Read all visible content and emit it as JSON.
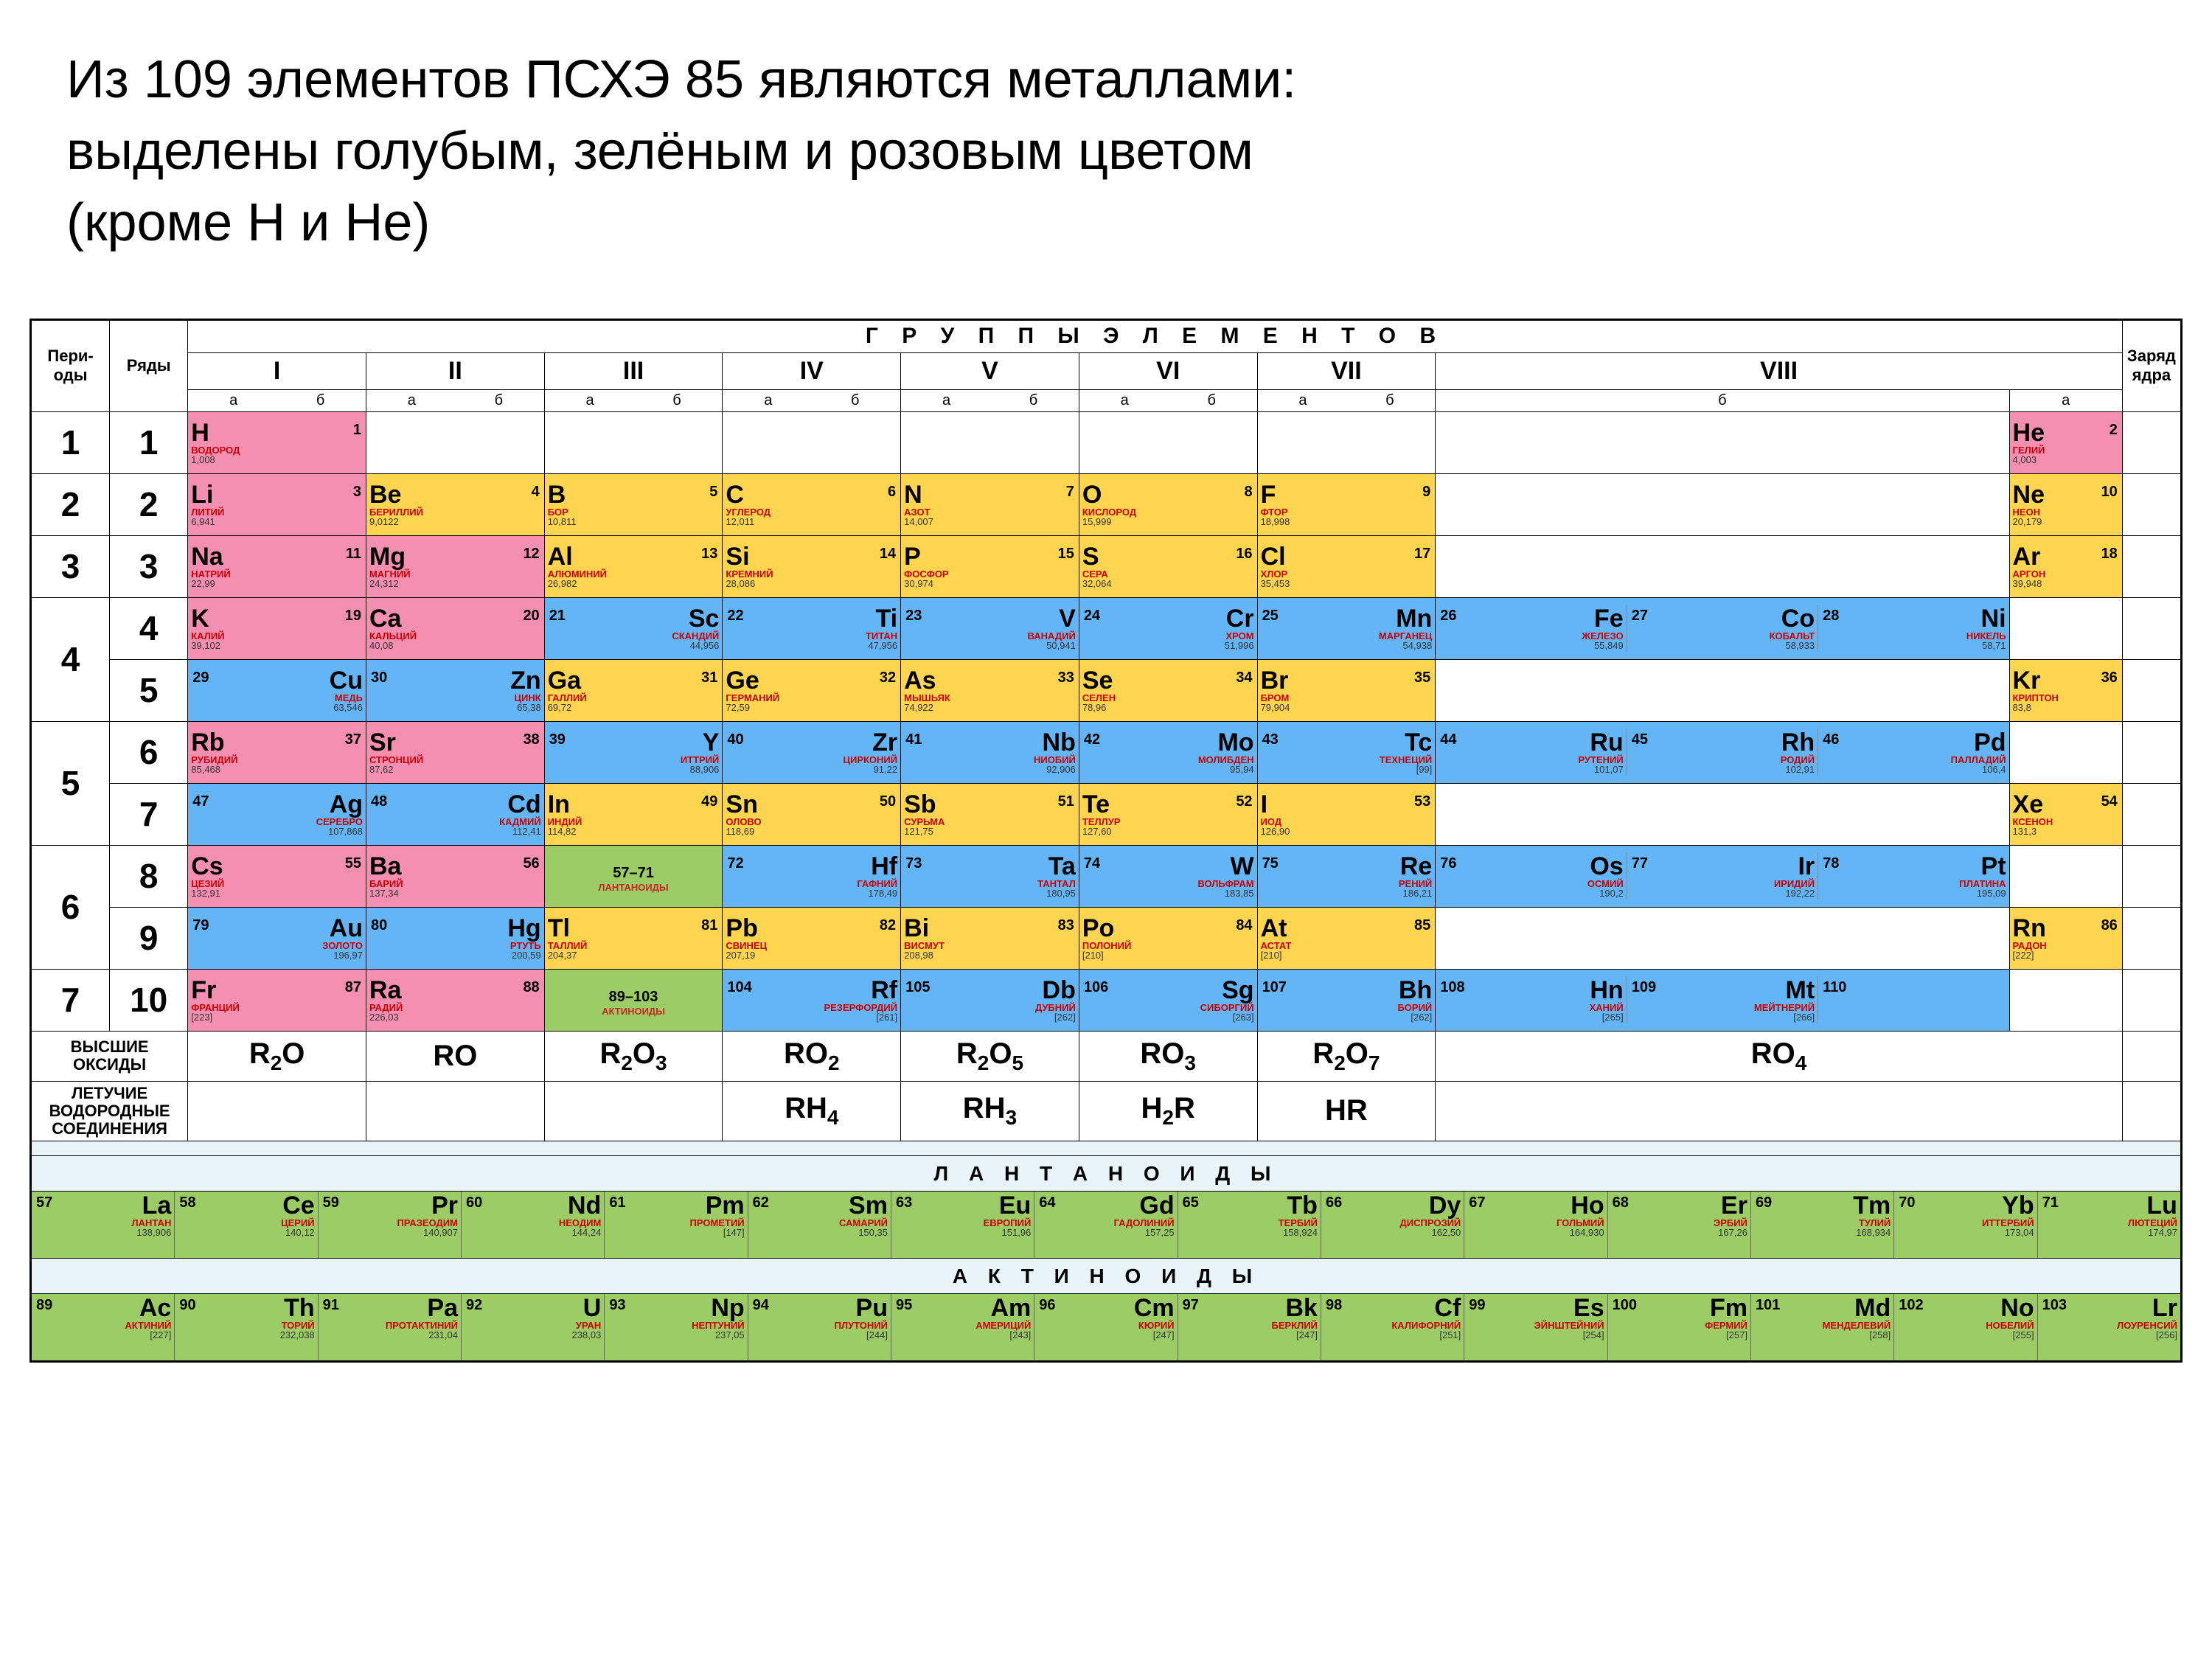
{
  "title_line1": "Из 109 элементов ПСХЭ 85 являются металлами:",
  "title_line2": "выделены голубым, зелёным и розовым цветом",
  "title_line3": "(кроме Н и Не)",
  "text_color": "#000000",
  "colors": {
    "pink": "#f48fb1",
    "yellow": "#ffd54f",
    "blue": "#64b5f6",
    "green": "#9ccc65",
    "white": "#ffffff",
    "spacer": "#e8f4f8",
    "name": "#c62828"
  },
  "header": {
    "periods": "Пери-\nоды",
    "rows": "Ряды",
    "groups_title": "Г Р У П П Ы   Э Л Е М Е Н Т О В",
    "edge": "Заряд ядра",
    "roman": [
      "I",
      "II",
      "III",
      "IV",
      "V",
      "VI",
      "VII",
      "VIII"
    ],
    "ab_a": "а",
    "ab_b": "б"
  },
  "rows": [
    {
      "period": "1",
      "row": "1",
      "cells": {
        "1a": {
          "s": "H",
          "n": 1,
          "name": "ВОДОРОД",
          "m": "1,008",
          "c": "pink",
          "side": "A"
        },
        "8a": {
          "s": "He",
          "n": 2,
          "name": "ГЕЛИЙ",
          "m": "4,003",
          "c": "pink",
          "side": "A"
        }
      }
    },
    {
      "period": "2",
      "row": "2",
      "cells": {
        "1a": {
          "s": "Li",
          "n": 3,
          "name": "ЛИТИЙ",
          "m": "6,941",
          "c": "pink",
          "side": "A"
        },
        "2a": {
          "s": "Be",
          "n": 4,
          "name": "БЕРИЛЛИЙ",
          "m": "9,0122",
          "c": "yellow",
          "side": "A"
        },
        "3a": {
          "s": "B",
          "n": 5,
          "name": "БОР",
          "m": "10,811",
          "c": "yellow",
          "side": "A"
        },
        "4a": {
          "s": "C",
          "n": 6,
          "name": "УГЛЕРОД",
          "m": "12,011",
          "c": "yellow",
          "side": "A"
        },
        "5a": {
          "s": "N",
          "n": 7,
          "name": "АЗОТ",
          "m": "14,007",
          "c": "yellow",
          "side": "A"
        },
        "6a": {
          "s": "O",
          "n": 8,
          "name": "КИСЛОРОД",
          "m": "15,999",
          "c": "yellow",
          "side": "A"
        },
        "7a": {
          "s": "F",
          "n": 9,
          "name": "ФТОР",
          "m": "18,998",
          "c": "yellow",
          "side": "A"
        },
        "8a": {
          "s": "Ne",
          "n": 10,
          "name": "НЕОН",
          "m": "20,179",
          "c": "yellow",
          "side": "A"
        }
      }
    },
    {
      "period": "3",
      "row": "3",
      "cells": {
        "1a": {
          "s": "Na",
          "n": 11,
          "name": "НАТРИЙ",
          "m": "22,99",
          "c": "pink",
          "side": "A"
        },
        "2a": {
          "s": "Mg",
          "n": 12,
          "name": "МАГНИЙ",
          "m": "24,312",
          "c": "pink",
          "side": "A"
        },
        "3a": {
          "s": "Al",
          "n": 13,
          "name": "АЛЮМИНИЙ",
          "m": "26,982",
          "c": "yellow",
          "side": "A"
        },
        "4a": {
          "s": "Si",
          "n": 14,
          "name": "КРЕМНИЙ",
          "m": "28,086",
          "c": "yellow",
          "side": "A"
        },
        "5a": {
          "s": "P",
          "n": 15,
          "name": "ФОСФОР",
          "m": "30,974",
          "c": "yellow",
          "side": "A"
        },
        "6a": {
          "s": "S",
          "n": 16,
          "name": "СЕРА",
          "m": "32,064",
          "c": "yellow",
          "side": "A"
        },
        "7a": {
          "s": "Cl",
          "n": 17,
          "name": "ХЛОР",
          "m": "35,453",
          "c": "yellow",
          "side": "A"
        },
        "8a": {
          "s": "Ar",
          "n": 18,
          "name": "АРГОН",
          "m": "39,948",
          "c": "yellow",
          "side": "A"
        }
      }
    },
    {
      "period": "4",
      "row": "4",
      "pspan": 2,
      "cells": {
        "1a": {
          "s": "K",
          "n": 19,
          "name": "КАЛИЙ",
          "m": "39,102",
          "c": "pink",
          "side": "A"
        },
        "2a": {
          "s": "Ca",
          "n": 20,
          "name": "КАЛЬЦИЙ",
          "m": "40,08",
          "c": "pink",
          "side": "A"
        },
        "3b": {
          "s": "Sc",
          "n": 21,
          "name": "СКАНДИЙ",
          "m": "44,956",
          "c": "blue",
          "side": "B"
        },
        "4b": {
          "s": "Ti",
          "n": 22,
          "name": "ТИТАН",
          "m": "47,956",
          "c": "blue",
          "side": "B"
        },
        "5b": {
          "s": "V",
          "n": 23,
          "name": "ВАНАДИЙ",
          "m": "50,941",
          "c": "blue",
          "side": "B"
        },
        "6b": {
          "s": "Cr",
          "n": 24,
          "name": "ХРОМ",
          "m": "51,996",
          "c": "blue",
          "side": "B"
        },
        "7b": {
          "s": "Mn",
          "n": 25,
          "name": "МАРГАНЕЦ",
          "m": "54,938",
          "c": "blue",
          "side": "B"
        },
        "8b": [
          {
            "s": "Fe",
            "n": 26,
            "name": "ЖЕЛЕЗО",
            "m": "55,849",
            "c": "blue"
          },
          {
            "s": "Co",
            "n": 27,
            "name": "КОБАЛЬТ",
            "m": "58,933",
            "c": "blue"
          },
          {
            "s": "Ni",
            "n": 28,
            "name": "НИКЕЛЬ",
            "m": "58,71",
            "c": "blue"
          }
        ]
      }
    },
    {
      "row": "5",
      "cells": {
        "1b": {
          "s": "Cu",
          "n": 29,
          "name": "МЕДЬ",
          "m": "63,546",
          "c": "blue",
          "side": "B"
        },
        "2b": {
          "s": "Zn",
          "n": 30,
          "name": "ЦИНК",
          "m": "65,38",
          "c": "blue",
          "side": "B"
        },
        "3a": {
          "s": "Ga",
          "n": 31,
          "name": "ГАЛЛИЙ",
          "m": "69,72",
          "c": "yellow",
          "side": "A"
        },
        "4a": {
          "s": "Ge",
          "n": 32,
          "name": "ГЕРМАНИЙ",
          "m": "72,59",
          "c": "yellow",
          "side": "A"
        },
        "5a": {
          "s": "As",
          "n": 33,
          "name": "МЫШЬЯК",
          "m": "74,922",
          "c": "yellow",
          "side": "A"
        },
        "6a": {
          "s": "Se",
          "n": 34,
          "name": "СЕЛЕН",
          "m": "78,96",
          "c": "yellow",
          "side": "A"
        },
        "7a": {
          "s": "Br",
          "n": 35,
          "name": "БРОМ",
          "m": "79,904",
          "c": "yellow",
          "side": "A"
        },
        "8a": {
          "s": "Kr",
          "n": 36,
          "name": "КРИПТОН",
          "m": "83,8",
          "c": "yellow",
          "side": "A"
        }
      }
    },
    {
      "period": "5",
      "row": "6",
      "pspan": 2,
      "cells": {
        "1a": {
          "s": "Rb",
          "n": 37,
          "name": "РУБИДИЙ",
          "m": "85,468",
          "c": "pink",
          "side": "A"
        },
        "2a": {
          "s": "Sr",
          "n": 38,
          "name": "СТРОНЦИЙ",
          "m": "87,62",
          "c": "pink",
          "side": "A"
        },
        "3b": {
          "s": "Y",
          "n": 39,
          "name": "ИТТРИЙ",
          "m": "88,906",
          "c": "blue",
          "side": "B"
        },
        "4b": {
          "s": "Zr",
          "n": 40,
          "name": "ЦИРКОНИЙ",
          "m": "91,22",
          "c": "blue",
          "side": "B"
        },
        "5b": {
          "s": "Nb",
          "n": 41,
          "name": "НИОБИЙ",
          "m": "92,906",
          "c": "blue",
          "side": "B"
        },
        "6b": {
          "s": "Mo",
          "n": 42,
          "name": "МОЛИБДЕН",
          "m": "95,94",
          "c": "blue",
          "side": "B"
        },
        "7b": {
          "s": "Tc",
          "n": 43,
          "name": "ТЕХНЕЦИЙ",
          "m": "[99]",
          "c": "blue",
          "side": "B"
        },
        "8b": [
          {
            "s": "Ru",
            "n": 44,
            "name": "РУТЕНИЙ",
            "m": "101,07",
            "c": "blue"
          },
          {
            "s": "Rh",
            "n": 45,
            "name": "РОДИЙ",
            "m": "102,91",
            "c": "blue"
          },
          {
            "s": "Pd",
            "n": 46,
            "name": "ПАЛЛАДИЙ",
            "m": "106,4",
            "c": "blue"
          }
        ]
      }
    },
    {
      "row": "7",
      "cells": {
        "1b": {
          "s": "Ag",
          "n": 47,
          "name": "СЕРЕБРО",
          "m": "107,868",
          "c": "blue",
          "side": "B"
        },
        "2b": {
          "s": "Cd",
          "n": 48,
          "name": "КАДМИЙ",
          "m": "112,41",
          "c": "blue",
          "side": "B"
        },
        "3a": {
          "s": "In",
          "n": 49,
          "name": "ИНДИЙ",
          "m": "114,82",
          "c": "yellow",
          "side": "A"
        },
        "4a": {
          "s": "Sn",
          "n": 50,
          "name": "ОЛОВО",
          "m": "118,69",
          "c": "yellow",
          "side": "A"
        },
        "5a": {
          "s": "Sb",
          "n": 51,
          "name": "СУРЬМА",
          "m": "121,75",
          "c": "yellow",
          "side": "A"
        },
        "6a": {
          "s": "Te",
          "n": 52,
          "name": "ТЕЛЛУР",
          "m": "127,60",
          "c": "yellow",
          "side": "A"
        },
        "7a": {
          "s": "I",
          "n": 53,
          "name": "ИОД",
          "m": "126,90",
          "c": "yellow",
          "side": "A"
        },
        "8a": {
          "s": "Xe",
          "n": 54,
          "name": "КСЕНОН",
          "m": "131,3",
          "c": "yellow",
          "side": "A"
        }
      }
    },
    {
      "period": "6",
      "row": "8",
      "pspan": 2,
      "cells": {
        "1a": {
          "s": "Cs",
          "n": 55,
          "name": "ЦЕЗИЙ",
          "m": "132,91",
          "c": "pink",
          "side": "A"
        },
        "2a": {
          "s": "Ba",
          "n": 56,
          "name": "БАРИЙ",
          "m": "137,34",
          "c": "pink",
          "side": "A"
        },
        "3b": {
          "s": "57–71",
          "name": "ЛАНТАНОИДЫ",
          "c": "green",
          "side": "B",
          "range": true
        },
        "4b": {
          "s": "Hf",
          "n": 72,
          "name": "ГАФНИЙ",
          "m": "178,49",
          "c": "blue",
          "side": "B"
        },
        "5b": {
          "s": "Ta",
          "n": 73,
          "name": "ТАНТАЛ",
          "m": "180,95",
          "c": "blue",
          "side": "B"
        },
        "6b": {
          "s": "W",
          "n": 74,
          "name": "ВОЛЬФРАМ",
          "m": "183,85",
          "c": "blue",
          "side": "B"
        },
        "7b": {
          "s": "Re",
          "n": 75,
          "name": "РЕНИЙ",
          "m": "186,21",
          "c": "blue",
          "side": "B"
        },
        "8b": [
          {
            "s": "Os",
            "n": 76,
            "name": "ОСМИЙ",
            "m": "190,2",
            "c": "blue"
          },
          {
            "s": "Ir",
            "n": 77,
            "name": "ИРИДИЙ",
            "m": "192,22",
            "c": "blue"
          },
          {
            "s": "Pt",
            "n": 78,
            "name": "ПЛАТИНА",
            "m": "195,09",
            "c": "blue"
          }
        ]
      }
    },
    {
      "row": "9",
      "cells": {
        "1b": {
          "s": "Au",
          "n": 79,
          "name": "ЗОЛОТО",
          "m": "196,97",
          "c": "blue",
          "side": "B"
        },
        "2b": {
          "s": "Hg",
          "n": 80,
          "name": "РТУТЬ",
          "m": "200,59",
          "c": "blue",
          "side": "B"
        },
        "3a": {
          "s": "Tl",
          "n": 81,
          "name": "ТАЛЛИЙ",
          "m": "204,37",
          "c": "yellow",
          "side": "A"
        },
        "4a": {
          "s": "Pb",
          "n": 82,
          "name": "СВИНЕЦ",
          "m": "207,19",
          "c": "yellow",
          "side": "A"
        },
        "5a": {
          "s": "Bi",
          "n": 83,
          "name": "ВИСМУТ",
          "m": "208,98",
          "c": "yellow",
          "side": "A"
        },
        "6a": {
          "s": "Po",
          "n": 84,
          "name": "ПОЛОНИЙ",
          "m": "[210]",
          "c": "yellow",
          "side": "A"
        },
        "7a": {
          "s": "At",
          "n": 85,
          "name": "АСТАТ",
          "m": "[210]",
          "c": "yellow",
          "side": "A"
        },
        "8a": {
          "s": "Rn",
          "n": 86,
          "name": "РАДОН",
          "m": "[222]",
          "c": "yellow",
          "side": "A"
        }
      }
    },
    {
      "period": "7",
      "row": "10",
      "cells": {
        "1a": {
          "s": "Fr",
          "n": 87,
          "name": "ФРАНЦИЙ",
          "m": "[223]",
          "c": "pink",
          "side": "A"
        },
        "2a": {
          "s": "Ra",
          "n": 88,
          "name": "РАДИЙ",
          "m": "226,03",
          "c": "pink",
          "side": "A"
        },
        "3b": {
          "s": "89–103",
          "name": "АКТИНОИДЫ",
          "c": "green",
          "side": "B",
          "range": true
        },
        "4b": {
          "s": "Rf",
          "n": 104,
          "name": "РЕЗЕРФОРДИЙ",
          "m": "[261]",
          "c": "blue",
          "side": "B"
        },
        "5b": {
          "s": "Db",
          "n": 105,
          "name": "ДУБНИЙ",
          "m": "[262]",
          "c": "blue",
          "side": "B"
        },
        "6b": {
          "s": "Sg",
          "n": 106,
          "name": "СИБОРГИЙ",
          "m": "[263]",
          "c": "blue",
          "side": "B"
        },
        "7b": {
          "s": "Bh",
          "n": 107,
          "name": "БОРИЙ",
          "m": "[262]",
          "c": "blue",
          "side": "B"
        },
        "8b": [
          {
            "s": "Hn",
            "n": 108,
            "name": "ХАНИЙ",
            "m": "[265]",
            "c": "blue"
          },
          {
            "s": "Mt",
            "n": 109,
            "name": "МЕЙТНЕРИЙ",
            "m": "[266]",
            "c": "blue"
          },
          {
            "s": "",
            "n": 110,
            "name": "",
            "m": "",
            "c": "blue"
          }
        ]
      }
    }
  ],
  "oxides": {
    "label": "ВЫСШИЕ\nОКСИДЫ",
    "formulas": [
      "R₂O",
      "RO",
      "R₂O₃",
      "RO₂",
      "R₂O₅",
      "RO₃",
      "R₂O₇",
      "RO₄"
    ]
  },
  "hydrides": {
    "label": "ЛЕТУЧИЕ\nВОДОРОДНЫЕ\nСОЕДИНЕНИЯ",
    "formulas": [
      "",
      "",
      "",
      "RH₄",
      "RH₃",
      "H₂R",
      "HR",
      ""
    ]
  },
  "lanthanides": {
    "title": "Л А Н Т А Н О И Д Ы",
    "items": [
      {
        "s": "La",
        "n": 57,
        "name": "ЛАНТАН",
        "m": "138,906"
      },
      {
        "s": "Ce",
        "n": 58,
        "name": "ЦЕРИЙ",
        "m": "140,12"
      },
      {
        "s": "Pr",
        "n": 59,
        "name": "ПРАЗЕОДИМ",
        "m": "140,907"
      },
      {
        "s": "Nd",
        "n": 60,
        "name": "НЕОДИМ",
        "m": "144,24"
      },
      {
        "s": "Pm",
        "n": 61,
        "name": "ПРОМЕТИЙ",
        "m": "[147]"
      },
      {
        "s": "Sm",
        "n": 62,
        "name": "САМАРИЙ",
        "m": "150,35"
      },
      {
        "s": "Eu",
        "n": 63,
        "name": "ЕВРОПИЙ",
        "m": "151,96"
      },
      {
        "s": "Gd",
        "n": 64,
        "name": "ГАДОЛИНИЙ",
        "m": "157,25"
      },
      {
        "s": "Tb",
        "n": 65,
        "name": "ТЕРБИЙ",
        "m": "158,924"
      },
      {
        "s": "Dy",
        "n": 66,
        "name": "ДИСПРОЗИЙ",
        "m": "162,50"
      },
      {
        "s": "Ho",
        "n": 67,
        "name": "ГОЛЬМИЙ",
        "m": "164,930"
      },
      {
        "s": "Er",
        "n": 68,
        "name": "ЭРБИЙ",
        "m": "167,26"
      },
      {
        "s": "Tm",
        "n": 69,
        "name": "ТУЛИЙ",
        "m": "168,934"
      },
      {
        "s": "Yb",
        "n": 70,
        "name": "ИТТЕРБИЙ",
        "m": "173,04"
      },
      {
        "s": "Lu",
        "n": 71,
        "name": "ЛЮТЕЦИЙ",
        "m": "174,97"
      }
    ]
  },
  "actinides": {
    "title": "А К Т И Н О И Д Ы",
    "items": [
      {
        "s": "Ac",
        "n": 89,
        "name": "АКТИНИЙ",
        "m": "[227]"
      },
      {
        "s": "Th",
        "n": 90,
        "name": "ТОРИЙ",
        "m": "232,038"
      },
      {
        "s": "Pa",
        "n": 91,
        "name": "ПРОТАКТИНИЙ",
        "m": "231,04"
      },
      {
        "s": "U",
        "n": 92,
        "name": "УРАН",
        "m": "238,03"
      },
      {
        "s": "Np",
        "n": 93,
        "name": "НЕПТУНИЙ",
        "m": "237,05"
      },
      {
        "s": "Pu",
        "n": 94,
        "name": "ПЛУТОНИЙ",
        "m": "[244]"
      },
      {
        "s": "Am",
        "n": 95,
        "name": "АМЕРИЦИЙ",
        "m": "[243]"
      },
      {
        "s": "Cm",
        "n": 96,
        "name": "КЮРИЙ",
        "m": "[247]"
      },
      {
        "s": "Bk",
        "n": 97,
        "name": "БЕРКЛИЙ",
        "m": "[247]"
      },
      {
        "s": "Cf",
        "n": 98,
        "name": "КАЛИФОРНИЙ",
        "m": "[251]"
      },
      {
        "s": "Es",
        "n": 99,
        "name": "ЭЙНШТЕЙНИЙ",
        "m": "[254]"
      },
      {
        "s": "Fm",
        "n": 100,
        "name": "ФЕРМИЙ",
        "m": "[257]"
      },
      {
        "s": "Md",
        "n": 101,
        "name": "МЕНДЕЛЕВИЙ",
        "m": "[258]"
      },
      {
        "s": "No",
        "n": 102,
        "name": "НОБЕЛИЙ",
        "m": "[255]"
      },
      {
        "s": "Lr",
        "n": 103,
        "name": "ЛОУРЕНСИЙ",
        "m": "[256]"
      }
    ]
  }
}
